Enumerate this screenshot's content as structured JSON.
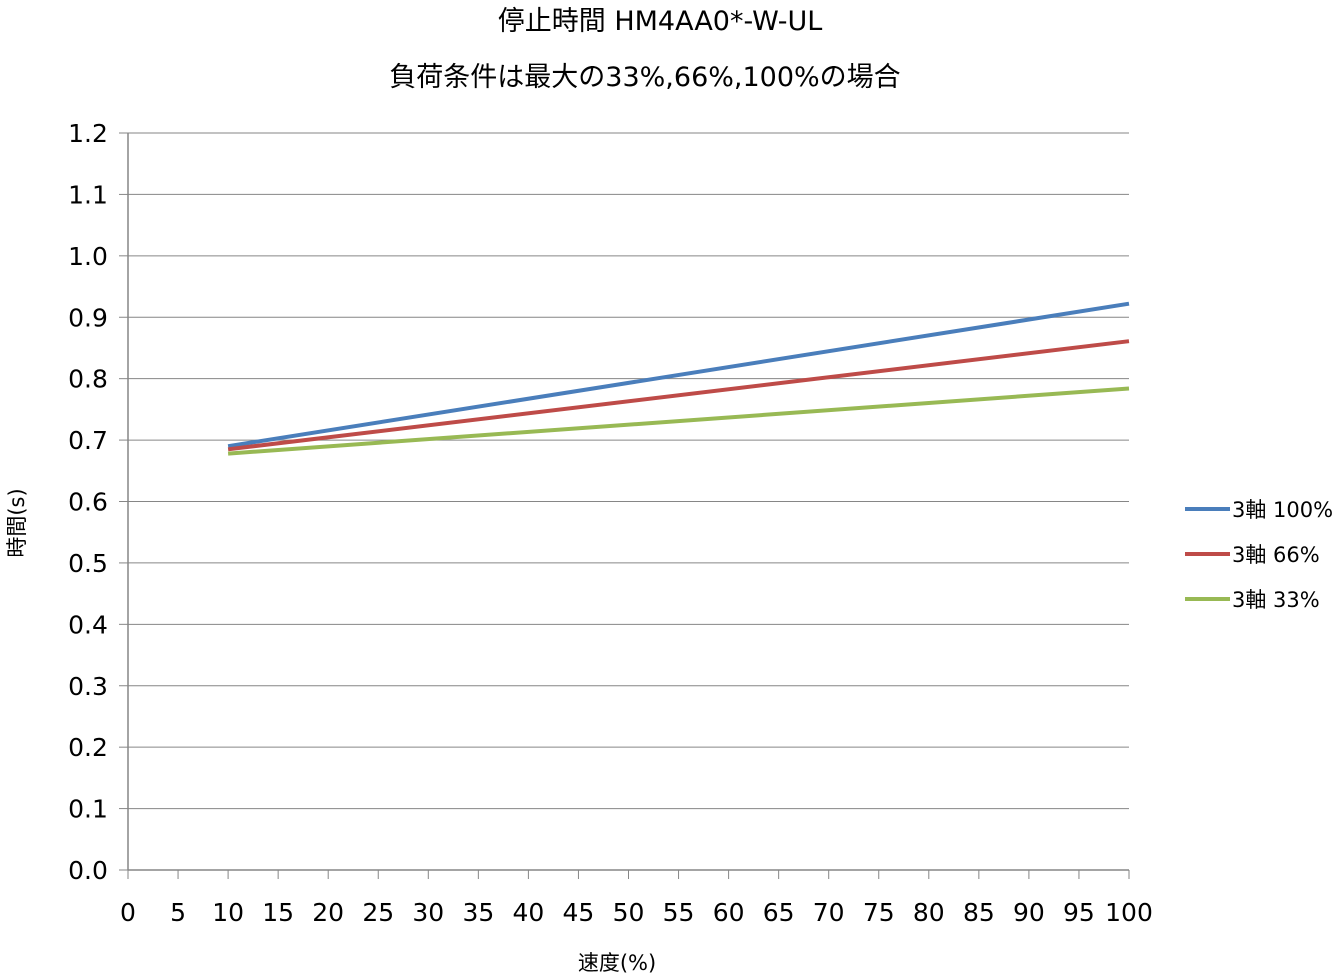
{
  "chart_data": {
    "type": "line",
    "title": "停止時間 HM4AA0*-W-UL",
    "subtitle": "負荷条件は最大の33%,66%,100%の場合",
    "xlabel": "速度(%)",
    "ylabel": "時間(s)",
    "xlim": [
      0,
      100
    ],
    "ylim": [
      0.0,
      1.2
    ],
    "x_ticks": [
      0,
      5,
      10,
      15,
      20,
      25,
      30,
      35,
      40,
      45,
      50,
      55,
      60,
      65,
      70,
      75,
      80,
      85,
      90,
      95,
      100
    ],
    "x_tick_labels": [
      "0",
      "5",
      "10",
      "15",
      "20",
      "25",
      "30",
      "35",
      "40",
      "45",
      "50",
      "55",
      "60",
      "65",
      "70",
      "75",
      "80",
      "85",
      "90",
      "95",
      "100"
    ],
    "y_ticks": [
      0.0,
      0.1,
      0.2,
      0.3,
      0.4,
      0.5,
      0.6,
      0.7,
      0.8,
      0.9,
      1.0,
      1.1,
      1.2
    ],
    "y_tick_labels": [
      "0.0",
      "0.1",
      "0.2",
      "0.3",
      "0.4",
      "0.5",
      "0.6",
      "0.7",
      "0.8",
      "0.9",
      "1.0",
      "1.1",
      "1.2"
    ],
    "grid": "horizontal",
    "legend_position": "right",
    "series": [
      {
        "name": "3軸 100%",
        "color": "#4a7ebb",
        "x": [
          10,
          100
        ],
        "y": [
          0.69,
          0.922
        ]
      },
      {
        "name": "3軸 66%",
        "color": "#be4b48",
        "x": [
          10,
          100
        ],
        "y": [
          0.685,
          0.861
        ]
      },
      {
        "name": "3軸 33%",
        "color": "#98b954",
        "x": [
          10,
          100
        ],
        "y": [
          0.678,
          0.784
        ]
      }
    ]
  }
}
